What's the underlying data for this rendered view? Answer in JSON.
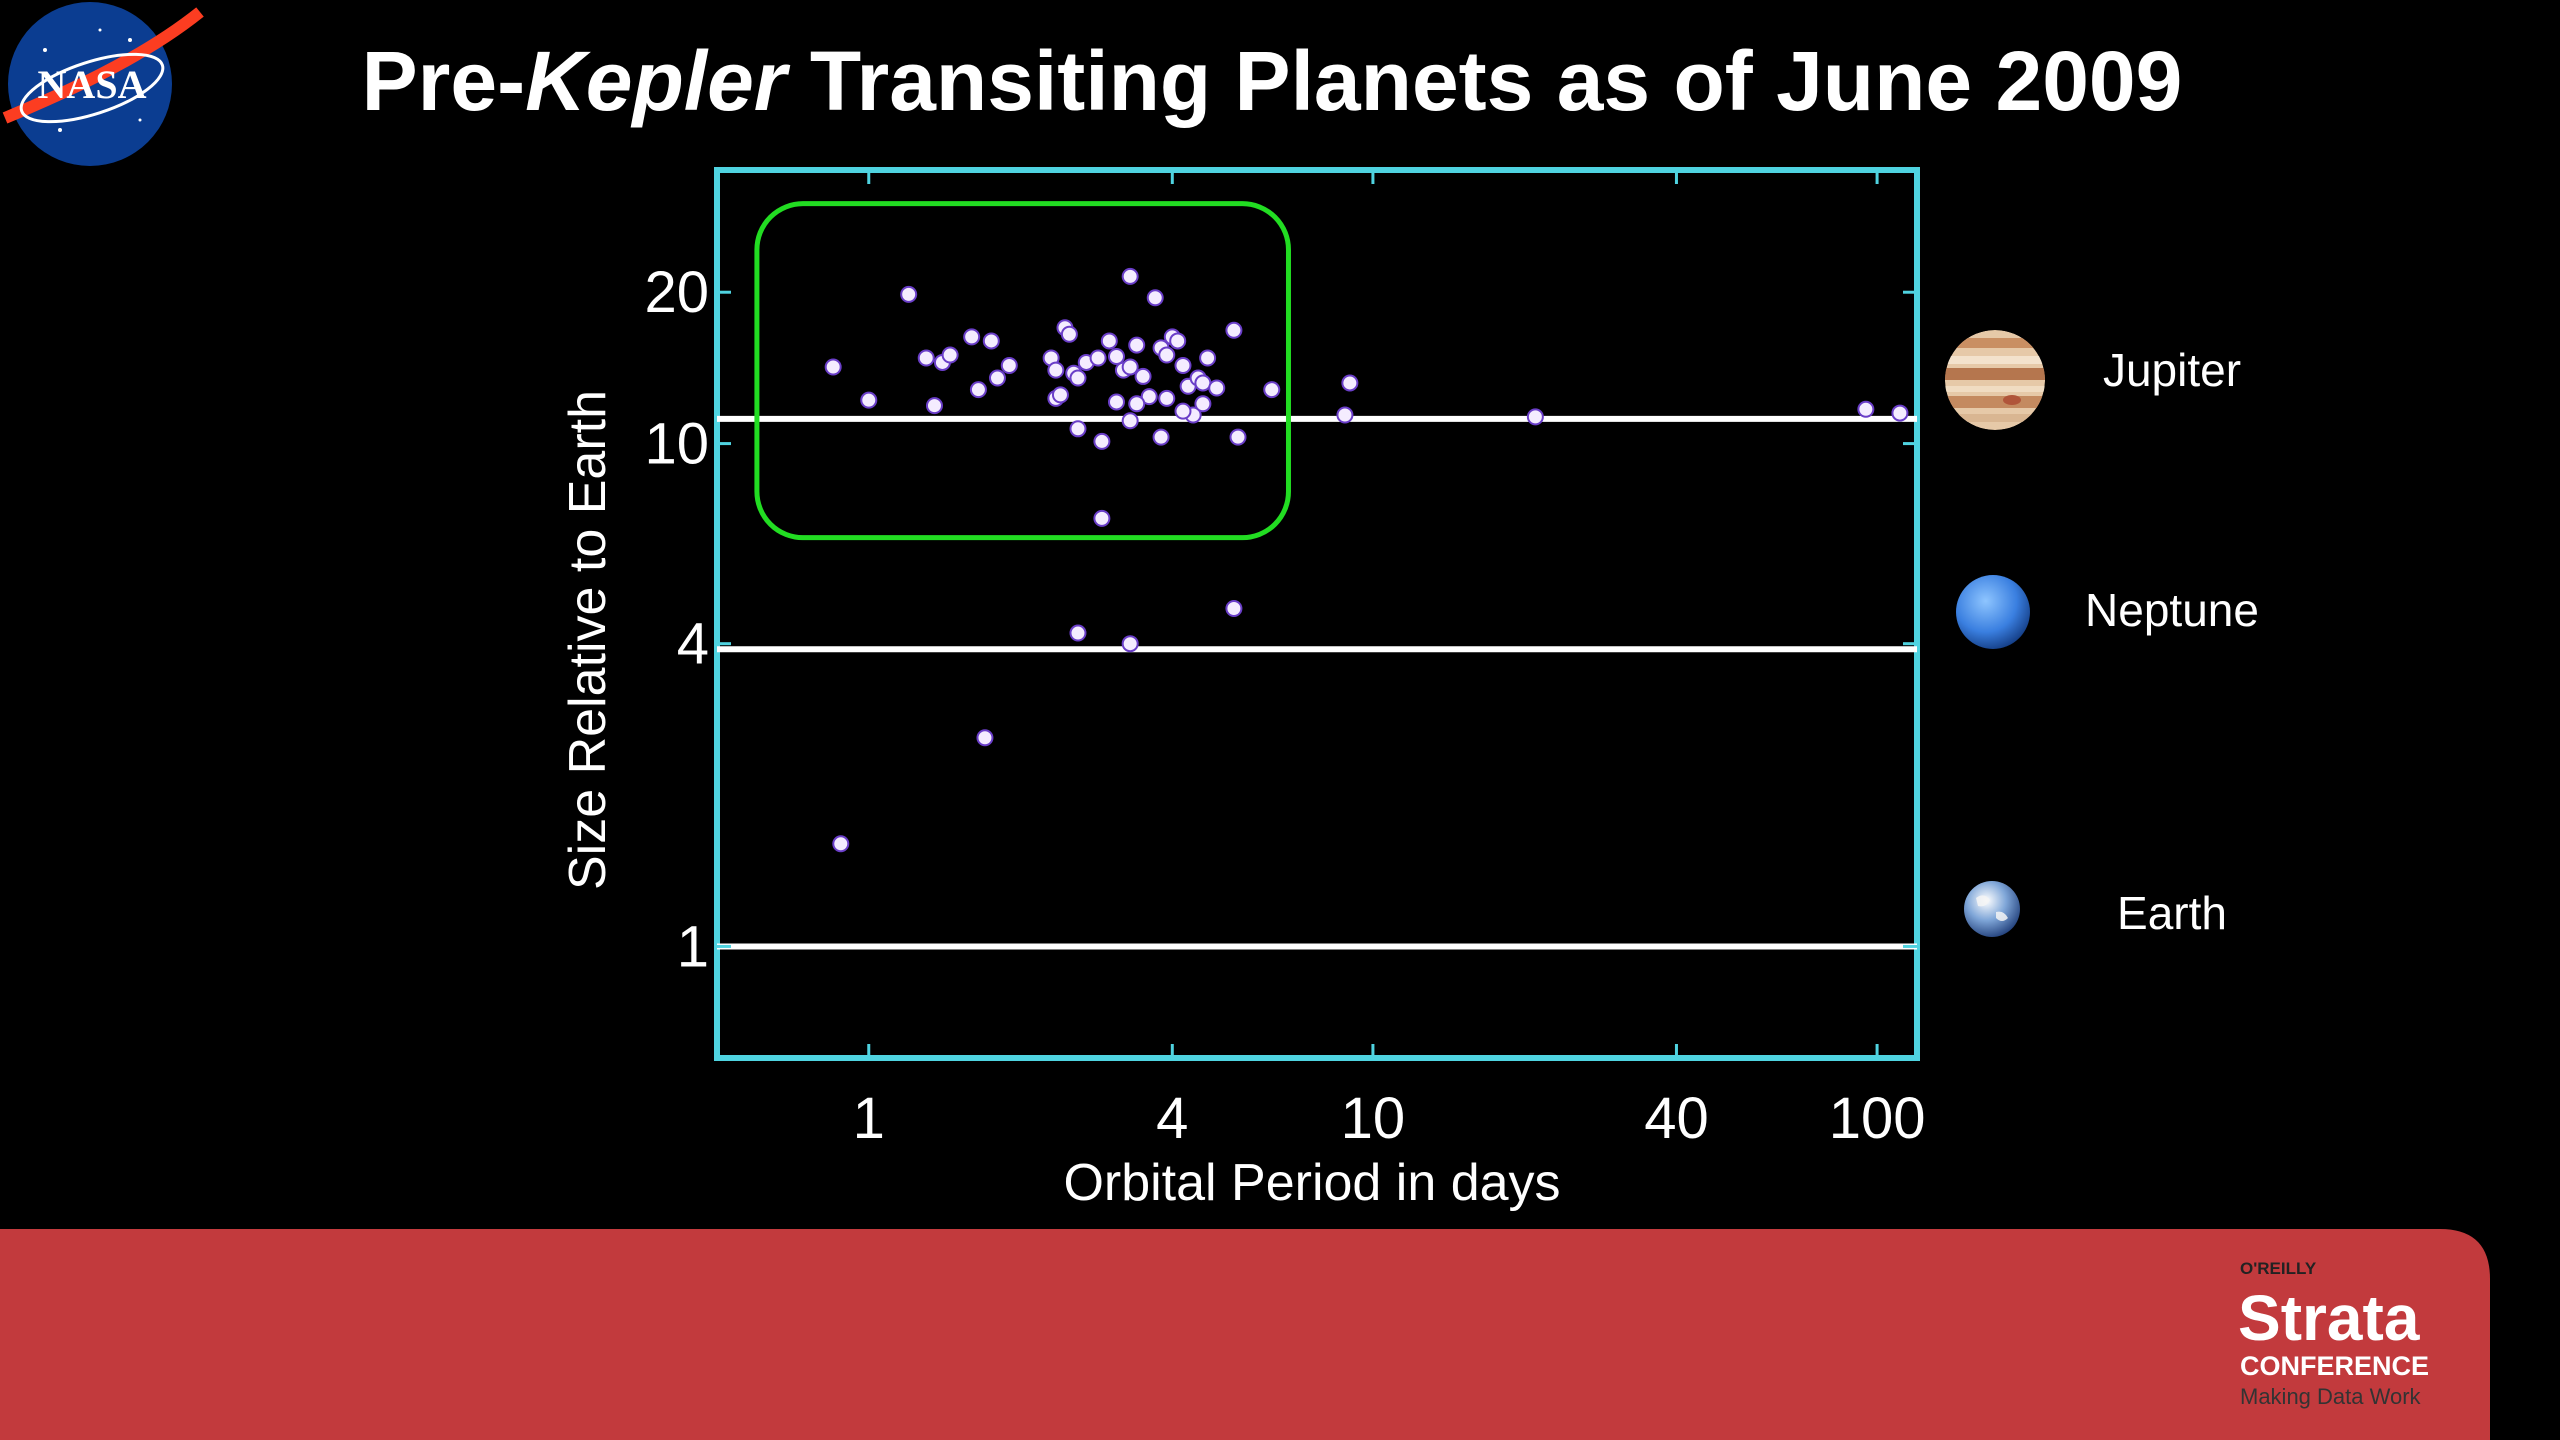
{
  "slide": {
    "title_prefix": "Pre-",
    "title_italic": "Kepler",
    "title_suffix": " Transiting Planets as of June 2009",
    "logo_text": "NASA"
  },
  "footer": {
    "publisher": "O'REILLY",
    "brand": "Strata",
    "sub": "CONFERENCE",
    "tagline": "Making Data Work",
    "color": "#c23a3d"
  },
  "legend": {
    "items": [
      {
        "label": "Jupiter",
        "icon": "jupiter-icon"
      },
      {
        "label": "Neptune",
        "icon": "neptune-icon"
      },
      {
        "label": "Earth",
        "icon": "earth-icon"
      }
    ]
  },
  "colors": {
    "frame": "#4fd3e0",
    "highlight": "#22dd22",
    "points": "#f4ecff",
    "point_edge": "#6a3ec8"
  },
  "chart_data": {
    "type": "scatter",
    "xlabel": "Orbital Period in days",
    "ylabel": "Size Relative to Earth",
    "xscale": "log",
    "yscale": "log",
    "xlim": [
      0.5,
      120
    ],
    "ylim": [
      0.6,
      35
    ],
    "xticks": [
      1,
      4,
      10,
      40,
      100
    ],
    "yticks": [
      1,
      4,
      10,
      20
    ],
    "reference_lines": [
      {
        "name": "Jupiter",
        "y": 11.2
      },
      {
        "name": "Neptune",
        "y": 3.9
      },
      {
        "name": "Earth",
        "y": 1
      }
    ],
    "highlight_box": {
      "x": [
        0.6,
        6.8
      ],
      "y": [
        6.5,
        30
      ]
    },
    "points": [
      [
        0.85,
        14.2
      ],
      [
        1.2,
        19.8
      ],
      [
        1.0,
        12.2
      ],
      [
        1.3,
        14.8
      ],
      [
        1.4,
        14.5
      ],
      [
        1.45,
        15.0
      ],
      [
        1.6,
        16.3
      ],
      [
        1.35,
        11.9
      ],
      [
        1.75,
        16.0
      ],
      [
        1.65,
        12.8
      ],
      [
        1.8,
        13.5
      ],
      [
        1.9,
        14.3
      ],
      [
        2.3,
        14.8
      ],
      [
        2.35,
        14.0
      ],
      [
        2.45,
        17.0
      ],
      [
        2.5,
        16.5
      ],
      [
        2.55,
        13.8
      ],
      [
        2.7,
        14.5
      ],
      [
        2.6,
        13.5
      ],
      [
        2.85,
        14.8
      ],
      [
        3.0,
        16.0
      ],
      [
        3.1,
        14.9
      ],
      [
        3.2,
        14.0
      ],
      [
        3.3,
        14.2
      ],
      [
        3.5,
        13.6
      ],
      [
        3.4,
        15.7
      ],
      [
        3.3,
        21.5
      ],
      [
        3.7,
        19.5
      ],
      [
        3.8,
        15.5
      ],
      [
        4.0,
        16.3
      ],
      [
        3.9,
        15.0
      ],
      [
        4.1,
        16.0
      ],
      [
        4.2,
        14.3
      ],
      [
        4.3,
        13.0
      ],
      [
        4.5,
        13.5
      ],
      [
        4.7,
        14.8
      ],
      [
        4.6,
        13.2
      ],
      [
        4.9,
        12.9
      ],
      [
        5.3,
        16.8
      ],
      [
        2.35,
        12.3
      ],
      [
        2.4,
        12.5
      ],
      [
        3.1,
        12.1
      ],
      [
        3.6,
        12.4
      ],
      [
        3.4,
        12.0
      ],
      [
        3.3,
        11.1
      ],
      [
        2.6,
        10.7
      ],
      [
        2.9,
        10.1
      ],
      [
        3.8,
        10.3
      ],
      [
        4.4,
        11.4
      ],
      [
        5.4,
        10.3
      ],
      [
        6.3,
        12.8
      ],
      [
        9.0,
        13.2
      ],
      [
        8.8,
        11.4
      ],
      [
        4.6,
        12.0
      ],
      [
        3.9,
        12.3
      ],
      [
        4.2,
        11.6
      ],
      [
        2.9,
        7.1
      ],
      [
        21.0,
        11.3
      ],
      [
        95.0,
        11.7
      ],
      [
        111.0,
        11.5
      ],
      [
        2.6,
        4.2
      ],
      [
        3.3,
        4.0
      ],
      [
        5.3,
        4.7
      ],
      [
        1.7,
        2.6
      ],
      [
        0.88,
        1.6
      ]
    ]
  }
}
